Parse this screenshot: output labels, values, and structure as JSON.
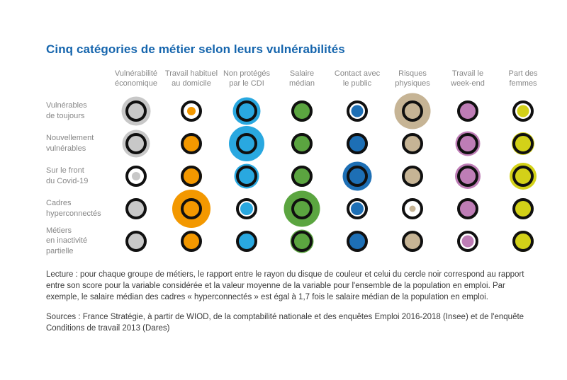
{
  "title": "Cinq catégories de métier selon leurs vulnérabilités",
  "accent_color": "#1565AD",
  "lecture": "Lecture : pour chaque groupe de métiers, le rapport entre le rayon du disque de couleur et celui du cercle noir correspond au rapport entre son score pour la variable considérée et la valeur moyenne de la variable pour l'ensemble de la population en emploi. Par exemple, le salaire médian des cadres « hyperconnectés » est égal à 1,7 fois le salaire médian de la population en emploi.",
  "sources": "Sources : France Stratégie, à partir de WIOD, de la comptabilité nationale et des enquêtes Emploi 2016-2018 (Insee) et de l'enquête Conditions de travail 2013 (Dares)",
  "chart_data": {
    "type": "heatmap",
    "subtype": "bubble-matrix",
    "description": "Each cell shows a colored disk whose radius relative to the black reference circle equals the group's score for the variable divided by the average score of the whole employed population.",
    "ring_diameter": 30,
    "ring_color": "#101010",
    "columns": [
      {
        "label": "Vulnérabilité\néconomique",
        "color": "#C8C8C8"
      },
      {
        "label": "Travail habituel\nau domicile",
        "color": "#F39800"
      },
      {
        "label": "Non protégés\npar le CDI",
        "color": "#29A8E0"
      },
      {
        "label": "Salaire\nmédian",
        "color": "#5BA540"
      },
      {
        "label": "Contact avec\nle public",
        "color": "#1D6FB5"
      },
      {
        "label": "Risques\nphysiques",
        "color": "#C6B495"
      },
      {
        "label": "Travail le\nweek-end",
        "color": "#BE7DB6"
      },
      {
        "label": "Part des\nfemmes",
        "color": "#D3D118"
      }
    ],
    "rows": [
      "Vulnérables\nde toujours",
      "Nouvellement\nvulnérables",
      "Sur le front\ndu Covid-19",
      "Cadres\nhyperconnectés",
      "Métiers\nen inactivité\npartielle"
    ],
    "values": [
      [
        1.35,
        0.4,
        1.3,
        1.0,
        0.55,
        1.7,
        0.8,
        0.55
      ],
      [
        1.3,
        0.9,
        1.65,
        1.0,
        1.0,
        0.95,
        1.15,
        1.05
      ],
      [
        0.4,
        1.0,
        1.15,
        1.0,
        1.35,
        0.95,
        1.2,
        1.25
      ],
      [
        0.85,
        1.8,
        0.6,
        1.7,
        0.6,
        0.3,
        0.9,
        0.9
      ],
      [
        0.85,
        0.85,
        0.8,
        1.1,
        0.95,
        0.9,
        0.55,
        1.0
      ]
    ],
    "values_note": "value = colored disk radius / black circle radius, estimated from pixels; salaire médian of cadres hyperconnectés is stated as 1.7 in the caption"
  }
}
